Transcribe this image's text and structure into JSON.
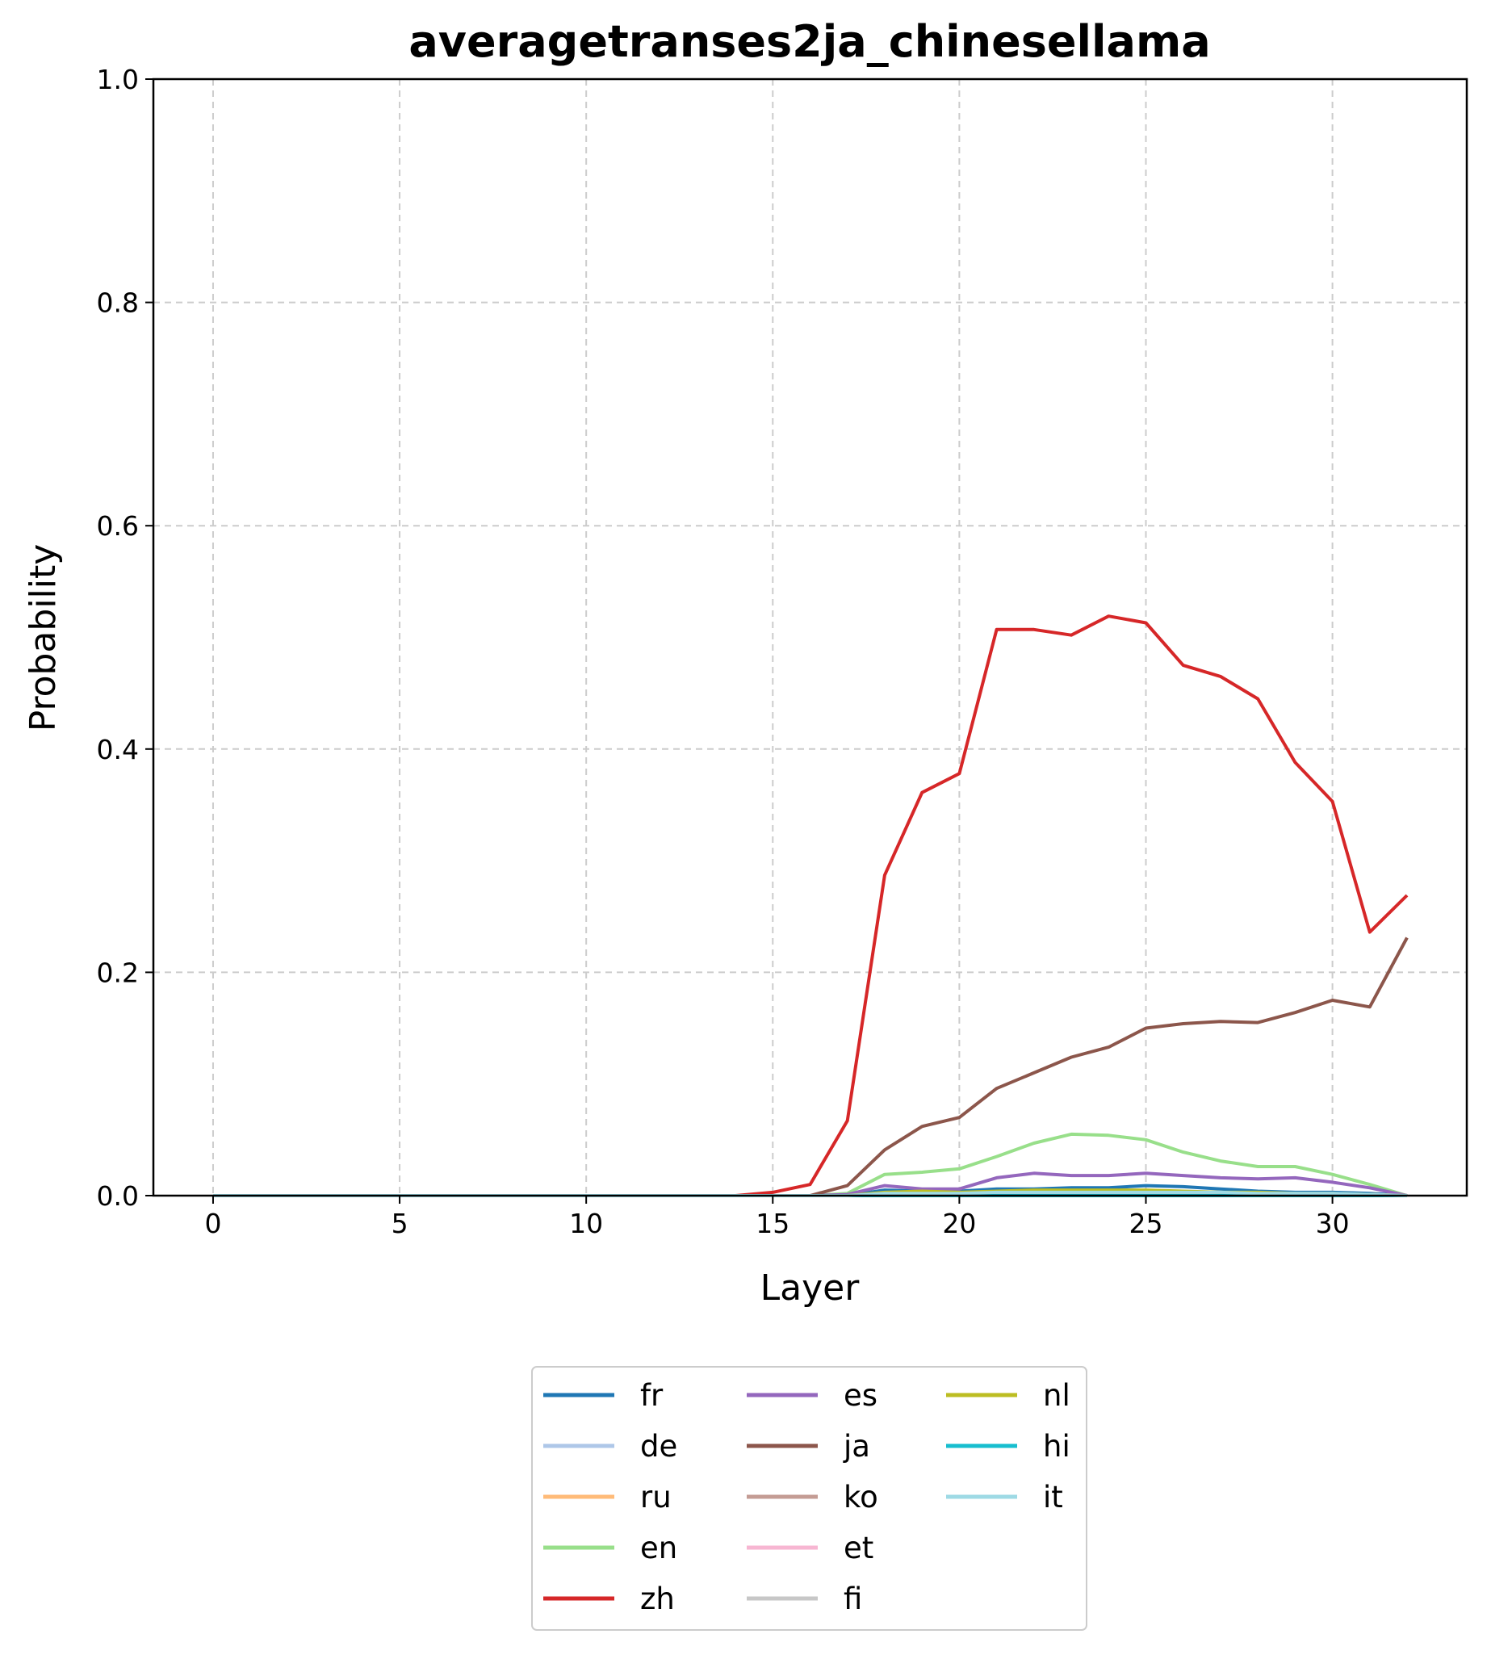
{
  "chart_data": {
    "type": "line",
    "title": "averagetranses2ja_chinesellama",
    "xlabel": "Layer",
    "ylabel": "Probability",
    "xlim": [
      -1.6,
      33.6
    ],
    "ylim": [
      0,
      1
    ],
    "xticks": [
      0,
      5,
      10,
      15,
      20,
      25,
      30
    ],
    "xtick_labels": [
      "0",
      "5",
      "10",
      "15",
      "20",
      "25",
      "30"
    ],
    "yticks": [
      0,
      0.2,
      0.4,
      0.6,
      0.8,
      1.0
    ],
    "ytick_labels": [
      "0.0",
      "0.2",
      "0.4",
      "0.6",
      "0.8",
      "1.0"
    ],
    "grid": true,
    "legend_position": "bottom-center, below plot, 3 columns",
    "x": [
      0,
      1,
      2,
      3,
      4,
      5,
      6,
      7,
      8,
      9,
      10,
      11,
      12,
      13,
      14,
      15,
      16,
      17,
      18,
      19,
      20,
      21,
      22,
      23,
      24,
      25,
      26,
      27,
      28,
      29,
      30,
      31,
      32
    ],
    "series": [
      {
        "name": "fr",
        "color": "#1f77b4",
        "values": [
          0,
          0,
          0,
          0,
          0,
          0,
          0,
          0,
          0,
          0,
          0,
          0,
          0,
          0,
          0,
          0,
          0,
          0,
          0.005,
          0.004,
          0.004,
          0.006,
          0.006,
          0.007,
          0.007,
          0.009,
          0.008,
          0.006,
          0.004,
          0.003,
          0.003,
          0.002,
          0
        ]
      },
      {
        "name": "de",
        "color": "#aec7e8",
        "values": [
          0,
          0,
          0,
          0,
          0,
          0,
          0,
          0,
          0,
          0,
          0,
          0,
          0,
          0,
          0,
          0,
          0,
          0,
          0.002,
          0.002,
          0.002,
          0.003,
          0.003,
          0.003,
          0.003,
          0.003,
          0.003,
          0.002,
          0.002,
          0.002,
          0.001,
          0.001,
          0
        ]
      },
      {
        "name": "ru",
        "color": "#ffbb78",
        "values": [
          0,
          0,
          0,
          0,
          0,
          0,
          0,
          0,
          0,
          0,
          0,
          0,
          0,
          0,
          0,
          0,
          0,
          0,
          0.001,
          0.001,
          0.001,
          0.002,
          0.002,
          0.002,
          0.002,
          0.002,
          0.002,
          0.001,
          0.001,
          0.001,
          0.001,
          0.001,
          0
        ]
      },
      {
        "name": "en",
        "color": "#98df8a",
        "values": [
          0,
          0,
          0,
          0,
          0,
          0,
          0,
          0,
          0,
          0,
          0,
          0,
          0,
          0,
          0,
          0,
          0,
          0.002,
          0.019,
          0.021,
          0.024,
          0.035,
          0.047,
          0.055,
          0.054,
          0.05,
          0.039,
          0.031,
          0.026,
          0.026,
          0.019,
          0.01,
          0
        ]
      },
      {
        "name": "zh",
        "color": "#d62728",
        "values": [
          0,
          0,
          0,
          0,
          0,
          0,
          0,
          0,
          0,
          0,
          0,
          0,
          0,
          0,
          0,
          0.003,
          0.01,
          0.067,
          0.287,
          0.361,
          0.378,
          0.507,
          0.507,
          0.502,
          0.519,
          0.513,
          0.475,
          0.465,
          0.445,
          0.388,
          0.353,
          0.236,
          0.269
        ]
      },
      {
        "name": "es",
        "color": "#9467bd",
        "values": [
          0,
          0,
          0,
          0,
          0,
          0,
          0,
          0,
          0,
          0,
          0,
          0,
          0,
          0,
          0,
          0,
          0,
          0.001,
          0.009,
          0.006,
          0.006,
          0.016,
          0.02,
          0.018,
          0.018,
          0.02,
          0.018,
          0.016,
          0.015,
          0.016,
          0.012,
          0.007,
          0
        ]
      },
      {
        "name": "ja",
        "color": "#8c564b",
        "values": [
          0,
          0,
          0,
          0,
          0,
          0,
          0,
          0,
          0,
          0,
          0,
          0,
          0,
          0,
          0,
          0,
          0,
          0.009,
          0.041,
          0.062,
          0.07,
          0.096,
          0.11,
          0.124,
          0.133,
          0.15,
          0.154,
          0.156,
          0.155,
          0.164,
          0.175,
          0.169,
          0.231
        ]
      },
      {
        "name": "ko",
        "color": "#c49c94",
        "values": [
          0,
          0,
          0,
          0,
          0,
          0,
          0,
          0,
          0,
          0,
          0,
          0,
          0,
          0,
          0,
          0,
          0,
          0,
          0.001,
          0.001,
          0.001,
          0.001,
          0.001,
          0.001,
          0.001,
          0.001,
          0.001,
          0.001,
          0.001,
          0.001,
          0.001,
          0.001,
          0
        ]
      },
      {
        "name": "et",
        "color": "#f7b6d2",
        "values": [
          0,
          0,
          0,
          0,
          0,
          0,
          0,
          0,
          0,
          0,
          0,
          0,
          0,
          0,
          0,
          0,
          0,
          0,
          0,
          0,
          0,
          0,
          0,
          0,
          0,
          0,
          0,
          0,
          0,
          0,
          0,
          0,
          0
        ]
      },
      {
        "name": "fi",
        "color": "#c7c7c7",
        "values": [
          0,
          0,
          0,
          0,
          0,
          0,
          0,
          0,
          0,
          0,
          0,
          0,
          0,
          0,
          0,
          0,
          0,
          0,
          0.001,
          0.001,
          0.001,
          0.001,
          0.001,
          0.001,
          0.001,
          0.001,
          0.001,
          0.001,
          0.001,
          0.001,
          0.001,
          0,
          0
        ]
      },
      {
        "name": "nl",
        "color": "#bcbd22",
        "values": [
          0,
          0,
          0,
          0,
          0,
          0,
          0,
          0,
          0,
          0,
          0,
          0,
          0,
          0,
          0,
          0,
          0,
          0,
          0.003,
          0.004,
          0.003,
          0.004,
          0.005,
          0.005,
          0.005,
          0.005,
          0.004,
          0.003,
          0.003,
          0.002,
          0.002,
          0.001,
          0
        ]
      },
      {
        "name": "hi",
        "color": "#17becf",
        "values": [
          0,
          0,
          0,
          0,
          0,
          0,
          0,
          0,
          0,
          0,
          0,
          0,
          0,
          0,
          0,
          0,
          0,
          0,
          0,
          0,
          0,
          0,
          0,
          0,
          0,
          0,
          0,
          0,
          0,
          0,
          0,
          0,
          0
        ]
      },
      {
        "name": "it",
        "color": "#9edae5",
        "values": [
          0,
          0,
          0,
          0,
          0,
          0,
          0,
          0,
          0,
          0,
          0,
          0,
          0,
          0,
          0,
          0,
          0,
          0,
          0.002,
          0.002,
          0.002,
          0.003,
          0.003,
          0.003,
          0.003,
          0.003,
          0.003,
          0.003,
          0.002,
          0.002,
          0.002,
          0.001,
          0
        ]
      }
    ]
  }
}
